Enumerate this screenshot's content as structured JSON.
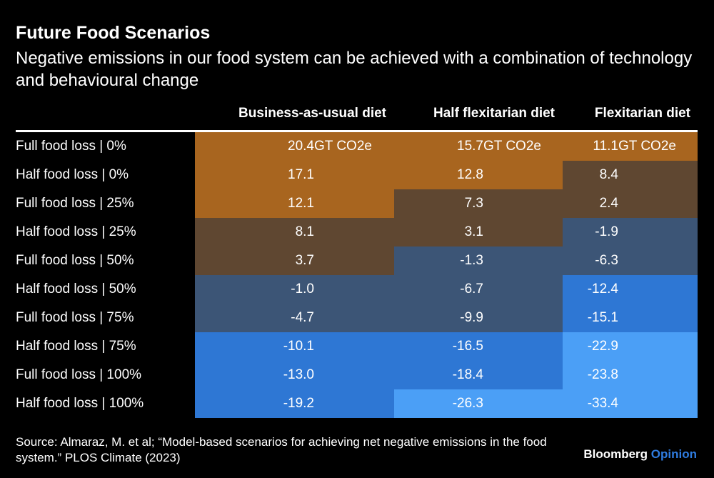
{
  "title": "Future Food Scenarios",
  "subtitle": "Negative emissions in our food system can be achieved with a combination of technology and behavioural change",
  "source": "Source: Almaraz, M. et al; “Model-based scenarios for achieving net negative emissions in the food system.” PLOS Climate (2023)",
  "logo": {
    "brand": "Bloomberg",
    "section": "Opinion"
  },
  "colors": {
    "orange": "#a8651f",
    "brown": "#5f4731",
    "slate": "#3c5576",
    "blue": "#2e77d4",
    "light_blue": "#4b9ff6"
  },
  "chart_data": {
    "type": "heatmap",
    "title": "Future Food Scenarios",
    "unit": "GT CO2e",
    "columns": [
      "Business-as-usual diet",
      "Half flexitarian diet",
      "Flexitarian diet"
    ],
    "rows": [
      "Full food loss | 0%",
      "Half food loss | 0%",
      "Full food loss | 25%",
      "Half food loss | 25%",
      "Full food loss | 50%",
      "Half food loss | 50%",
      "Full food loss | 75%",
      "Half food loss | 75%",
      "Full food loss | 100%",
      "Half food loss | 100%"
    ],
    "values": [
      [
        "20.4",
        "15.7",
        "11.1"
      ],
      [
        "17.1",
        "12.8",
        "8.4"
      ],
      [
        "12.1",
        "7.3",
        "2.4"
      ],
      [
        "8.1",
        "3.1",
        "-1.9"
      ],
      [
        "3.7",
        "-1.3",
        "-6.3"
      ],
      [
        "-1.0",
        "-6.7",
        "-12.4"
      ],
      [
        "-4.7",
        "-9.9",
        "-15.1"
      ],
      [
        "-10.1",
        "-16.5",
        "-22.9"
      ],
      [
        "-13.0",
        "-18.4",
        "-23.8"
      ],
      [
        "-19.2",
        "-26.3",
        "-33.4"
      ]
    ]
  }
}
